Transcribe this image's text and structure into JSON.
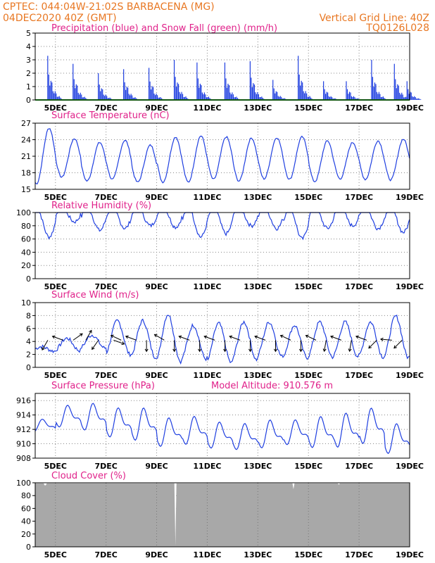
{
  "header": {
    "station_line": "CPTEC:   044:04W-21:02S   BARBACENA (MG)",
    "run_line": "04DEC2020 40Z (GMT)",
    "grid_line": "Vertical Grid Line: 40Z",
    "code": "TQ0126L028",
    "altitude_label": "Model Altitude: 910.576 m"
  },
  "colors": {
    "header": "#e87722",
    "title": "#e0218a",
    "precip": "#1f3fe0",
    "snow": "#22aa22",
    "line": "#1f3fe0",
    "cloud": "#a8a8a8",
    "grid": "#888888"
  },
  "x_ticks": [
    "5DEC",
    "7DEC",
    "9DEC",
    "11DEC",
    "13DEC",
    "15DEC",
    "17DEC",
    "19DEC"
  ],
  "chart_data": [
    {
      "type": "bar",
      "title": "Precipitation (blue) and Snow Fall (green) (mm/h)",
      "ylim": [
        0,
        5
      ],
      "yticks": [
        0,
        1,
        2,
        3,
        4,
        5
      ],
      "x_start_day": 4.2,
      "x_end_day": 19,
      "series": [
        {
          "name": "Precipitation",
          "peaks": [
            [
              4.7,
              3.3
            ],
            [
              5.7,
              2.7
            ],
            [
              6.7,
              2.0
            ],
            [
              7.7,
              2.3
            ],
            [
              8.7,
              2.4
            ],
            [
              9.7,
              3.0
            ],
            [
              10.6,
              2.8
            ],
            [
              11.7,
              2.8
            ],
            [
              12.7,
              2.9
            ],
            [
              13.6,
              1.5
            ],
            [
              14.6,
              3.3
            ],
            [
              15.6,
              1.4
            ],
            [
              16.5,
              1.4
            ],
            [
              17.5,
              3.0
            ],
            [
              18.4,
              2.7
            ],
            [
              18.9,
              1.4
            ]
          ]
        },
        {
          "name": "Snow Fall",
          "values": 0
        }
      ]
    },
    {
      "type": "line",
      "title": "Surface Temperature (nC)",
      "ylim": [
        15,
        27
      ],
      "yticks": [
        15,
        18,
        21,
        24,
        27
      ],
      "x_start_day": 4.2,
      "x_end_day": 19,
      "daily_max": [
        26.1,
        24.2,
        23.5,
        23.9,
        23.0,
        24.5,
        24.7,
        24.5,
        24.3,
        24.4,
        24.5,
        23.8,
        23.5,
        23.8,
        24.1
      ],
      "daily_min": [
        16.0,
        17.2,
        16.5,
        16.8,
        16.3,
        16.3,
        16.3,
        16.8,
        16.5,
        16.9,
        16.8,
        16.4,
        16.9,
        16.8,
        16.7
      ]
    },
    {
      "type": "line",
      "title": "Relative Humidity (%)",
      "ylim": [
        0,
        100
      ],
      "yticks": [
        0,
        20,
        40,
        60,
        80,
        100
      ],
      "x_start_day": 4.2,
      "x_end_day": 19,
      "daily_min": [
        55,
        78,
        65,
        68,
        72,
        70,
        55,
        60,
        72,
        68,
        52,
        68,
        72,
        68,
        62
      ]
    },
    {
      "type": "line",
      "title": "Surface Wind (m/s)",
      "ylim": [
        0,
        10
      ],
      "yticks": [
        0,
        2,
        4,
        6,
        8,
        10
      ],
      "x_start_day": 4.2,
      "x_end_day": 19,
      "daily_max": [
        3.2,
        4.5,
        5.0,
        7.2,
        7.2,
        8.2,
        6.5,
        6.8,
        7.0,
        7.0,
        6.5,
        7.0,
        7.0,
        7.0,
        7.9
      ],
      "daily_min": [
        2.5,
        2.6,
        3.0,
        2.0,
        1.6,
        0.9,
        1.3,
        0.7,
        1.2,
        1.7,
        1.5,
        1.6,
        1.7,
        1.6,
        1.5
      ],
      "arrows": [
        [
          4.7,
          120
        ],
        [
          5.3,
          200
        ],
        [
          5.7,
          325
        ],
        [
          6.2,
          300
        ],
        [
          6.7,
          125
        ],
        [
          7.3,
          20
        ],
        [
          7.6,
          205
        ],
        [
          8.2,
          200
        ],
        [
          8.6,
          90
        ],
        [
          9.3,
          210
        ],
        [
          9.7,
          90
        ],
        [
          10.3,
          200
        ],
        [
          10.7,
          90
        ],
        [
          11.3,
          200
        ],
        [
          11.7,
          90
        ],
        [
          12.3,
          200
        ],
        [
          12.7,
          90
        ],
        [
          13.3,
          200
        ],
        [
          13.7,
          90
        ],
        [
          14.3,
          205
        ],
        [
          14.7,
          90
        ],
        [
          15.3,
          205
        ],
        [
          15.7,
          100
        ],
        [
          16.3,
          200
        ],
        [
          16.7,
          100
        ],
        [
          17.3,
          200
        ],
        [
          17.7,
          135
        ],
        [
          18.3,
          185
        ],
        [
          18.7,
          135
        ]
      ]
    },
    {
      "type": "line",
      "title": "Surface Pressure (hPa)",
      "ylim": [
        908,
        917
      ],
      "yticks": [
        908,
        910,
        912,
        914,
        916
      ],
      "x_start_day": 4.2,
      "x_end_day": 19,
      "daily_max": [
        913.5,
        915.5,
        915.8,
        915.2,
        915.2,
        913.8,
        914.0,
        913.2,
        913.0,
        913.5,
        913.5,
        914.0,
        914.5,
        915.2,
        913.0
      ],
      "daily_min": [
        911.5,
        912.0,
        911.5,
        910.5,
        910.0,
        909.2,
        909.5,
        909.0,
        908.8,
        909.0,
        909.5,
        909.0,
        909.0,
        909.5,
        908.2
      ]
    },
    {
      "type": "area",
      "title": "Cloud Cover (%)",
      "ylim": [
        0,
        100
      ],
      "yticks": [
        0,
        20,
        40,
        60,
        80,
        100
      ],
      "x_start_day": 4.2,
      "x_end_day": 19,
      "typical_value": 99,
      "dips": [
        [
          4.6,
          96
        ],
        [
          9.75,
          2
        ],
        [
          14.4,
          90
        ],
        [
          16.2,
          97
        ]
      ]
    }
  ]
}
